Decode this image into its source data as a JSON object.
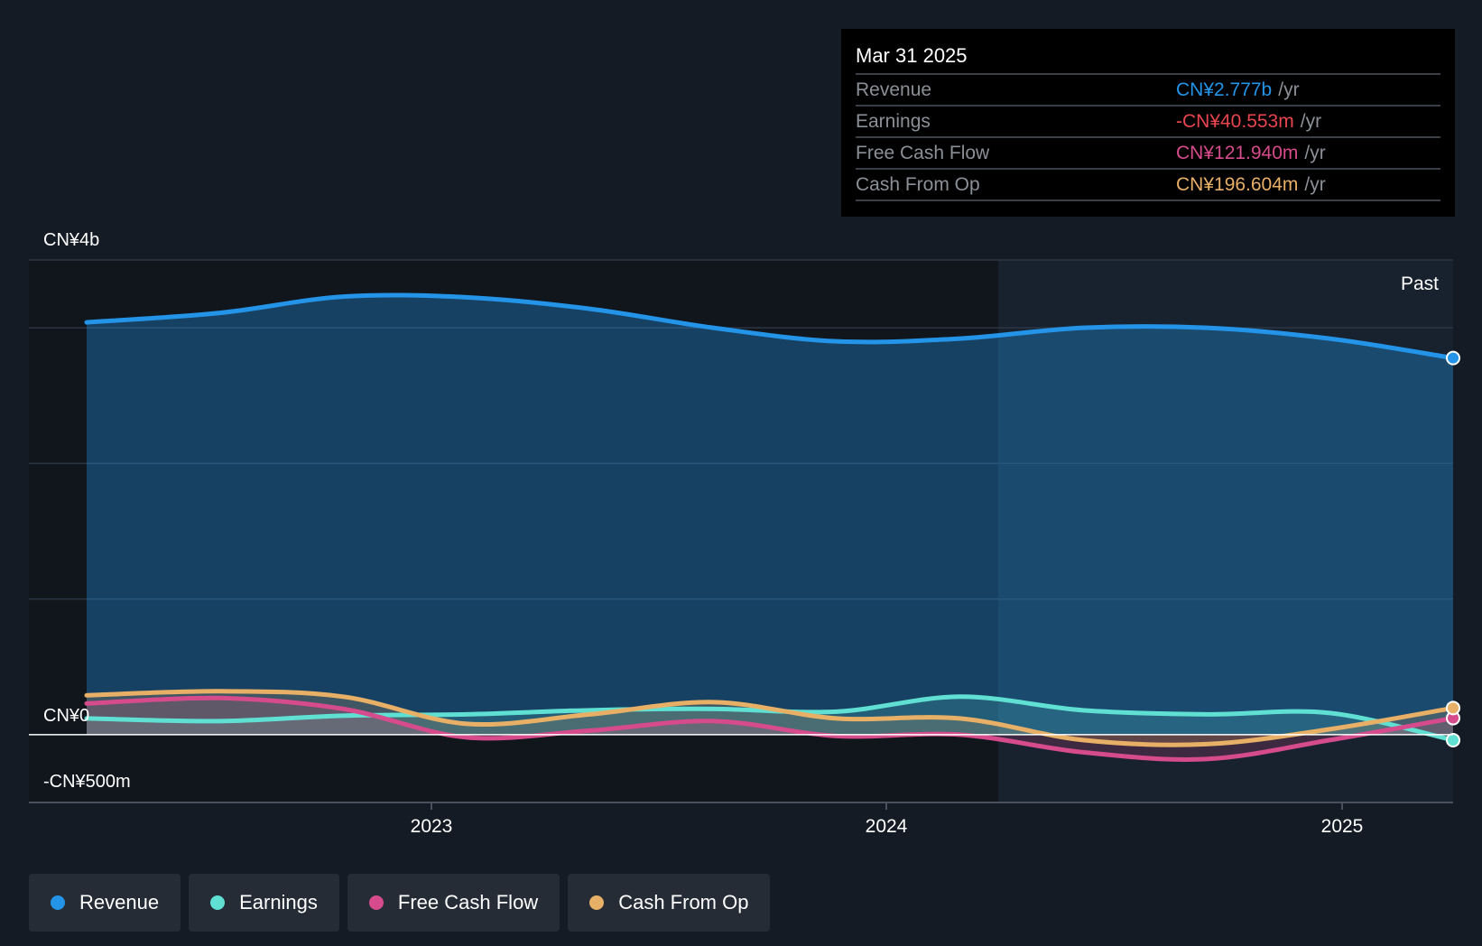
{
  "tooltip": {
    "date": "Mar 31 2025",
    "rows": [
      {
        "label": "Revenue",
        "value": "CN¥2.777b",
        "unit": "/yr",
        "color": "#2394e8"
      },
      {
        "label": "Earnings",
        "value": "-CN¥40.553m",
        "unit": "/yr",
        "color": "#e8454f"
      },
      {
        "label": "Free Cash Flow",
        "value": "CN¥121.940m",
        "unit": "/yr",
        "color": "#d64b8b"
      },
      {
        "label": "Cash From Op",
        "value": "CN¥196.604m",
        "unit": "/yr",
        "color": "#e8b066"
      }
    ]
  },
  "past_label": "Past",
  "legend": [
    {
      "label": "Revenue",
      "color": "#2394e8"
    },
    {
      "label": "Earnings",
      "color": "#5fe0d2"
    },
    {
      "label": "Free Cash Flow",
      "color": "#d64b8b"
    },
    {
      "label": "Cash From Op",
      "color": "#e8b066"
    }
  ],
  "chart_data": {
    "type": "area",
    "ylim": [
      -500,
      3500
    ],
    "y_tick_labels": [
      {
        "value": 3500,
        "label": "CN¥4b"
      },
      {
        "value": 0,
        "label": "CN¥0"
      },
      {
        "value": -500,
        "label": "-CN¥500m"
      }
    ],
    "x_ticks": [
      {
        "value": 2023.0,
        "label": "2023"
      },
      {
        "value": 2024.0,
        "label": "2024"
      },
      {
        "value": 2025.0,
        "label": "2025"
      }
    ],
    "xlim": [
      2022.35,
      2025.25
    ],
    "past_start": 2024.25,
    "series": [
      {
        "name": "Revenue",
        "color": "#2394e8",
        "points": [
          [
            2022.48,
            3040
          ],
          [
            2022.75,
            3110
          ],
          [
            2023.0,
            3230
          ],
          [
            2023.25,
            3225
          ],
          [
            2023.5,
            3140
          ],
          [
            2023.75,
            3000
          ],
          [
            2024.0,
            2900
          ],
          [
            2024.25,
            2920
          ],
          [
            2024.5,
            3000
          ],
          [
            2024.75,
            3000
          ],
          [
            2025.0,
            2920
          ],
          [
            2025.25,
            2777
          ]
        ]
      },
      {
        "name": "Earnings",
        "color": "#5fe0d2",
        "points": [
          [
            2022.48,
            120
          ],
          [
            2022.75,
            100
          ],
          [
            2023.0,
            140
          ],
          [
            2023.25,
            150
          ],
          [
            2023.5,
            180
          ],
          [
            2023.75,
            190
          ],
          [
            2024.0,
            170
          ],
          [
            2024.25,
            280
          ],
          [
            2024.5,
            180
          ],
          [
            2024.75,
            150
          ],
          [
            2025.0,
            160
          ],
          [
            2025.25,
            -40.553
          ]
        ]
      },
      {
        "name": "Free Cash Flow",
        "color": "#d64b8b",
        "points": [
          [
            2022.48,
            230
          ],
          [
            2022.75,
            270
          ],
          [
            2023.0,
            190
          ],
          [
            2023.25,
            -20
          ],
          [
            2023.5,
            30
          ],
          [
            2023.75,
            100
          ],
          [
            2024.0,
            -10
          ],
          [
            2024.25,
            0
          ],
          [
            2024.5,
            -130
          ],
          [
            2024.75,
            -180
          ],
          [
            2025.0,
            -40
          ],
          [
            2025.25,
            121.94
          ]
        ]
      },
      {
        "name": "Cash From Op",
        "color": "#e8b066",
        "points": [
          [
            2022.48,
            290
          ],
          [
            2022.75,
            320
          ],
          [
            2023.0,
            280
          ],
          [
            2023.25,
            80
          ],
          [
            2023.5,
            150
          ],
          [
            2023.75,
            240
          ],
          [
            2024.0,
            120
          ],
          [
            2024.25,
            120
          ],
          [
            2024.5,
            -40
          ],
          [
            2024.75,
            -70
          ],
          [
            2025.0,
            40
          ],
          [
            2025.25,
            196.604
          ]
        ]
      }
    ]
  }
}
